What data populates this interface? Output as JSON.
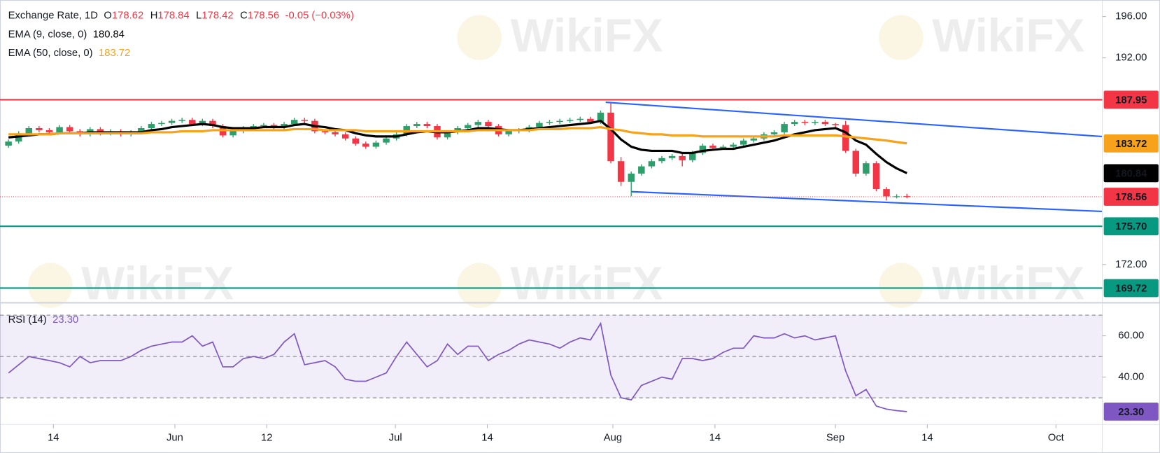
{
  "header": {
    "title": "Exchange Rate, 1D",
    "quote_keys": [
      "O",
      "H",
      "L",
      "C"
    ],
    "change": "-0.05 (−0.03%)"
  },
  "watermark": "WikiFX",
  "chart_data": [
    {
      "type": "candlestick",
      "ohlc": [
        [
          183.5,
          184.1,
          183.3,
          183.9
        ],
        [
          183.9,
          184.9,
          183.7,
          184.7
        ],
        [
          184.7,
          185.4,
          184.5,
          185.2
        ],
        [
          185.2,
          185.4,
          184.8,
          185.0
        ],
        [
          185.0,
          185.2,
          184.6,
          184.8
        ],
        [
          184.8,
          185.5,
          184.6,
          185.3
        ],
        [
          185.3,
          185.5,
          184.7,
          184.9
        ],
        [
          184.9,
          185.1,
          184.4,
          184.6
        ],
        [
          184.6,
          185.3,
          184.4,
          185.1
        ],
        [
          185.1,
          185.3,
          184.5,
          184.7
        ],
        [
          184.7,
          185.1,
          184.5,
          184.9
        ],
        [
          184.9,
          185.1,
          184.4,
          184.6
        ],
        [
          184.6,
          185.0,
          184.4,
          184.8
        ],
        [
          184.8,
          185.4,
          184.6,
          185.2
        ],
        [
          185.2,
          185.8,
          185.0,
          185.6
        ],
        [
          185.6,
          185.9,
          185.4,
          185.7
        ],
        [
          185.7,
          186.1,
          185.5,
          185.9
        ],
        [
          185.9,
          186.2,
          185.7,
          186.0
        ],
        [
          186.0,
          186.2,
          185.4,
          185.6
        ],
        [
          185.6,
          186.1,
          185.4,
          185.9
        ],
        [
          185.9,
          186.1,
          185.2,
          185.4
        ],
        [
          185.4,
          185.6,
          184.3,
          184.5
        ],
        [
          184.5,
          185.1,
          184.3,
          184.9
        ],
        [
          184.9,
          185.4,
          184.7,
          185.2
        ],
        [
          185.2,
          185.6,
          185.0,
          185.4
        ],
        [
          185.4,
          185.7,
          185.2,
          185.5
        ],
        [
          185.5,
          185.7,
          185.1,
          185.3
        ],
        [
          185.3,
          185.8,
          185.1,
          185.6
        ],
        [
          185.6,
          186.2,
          185.4,
          186.0
        ],
        [
          186.0,
          186.2,
          185.7,
          185.9
        ],
        [
          185.9,
          186.1,
          184.7,
          184.9
        ],
        [
          184.9,
          185.1,
          184.6,
          184.8
        ],
        [
          184.8,
          185.0,
          184.4,
          184.6
        ],
        [
          184.6,
          184.8,
          184.0,
          184.2
        ],
        [
          184.2,
          184.4,
          183.5,
          183.7
        ],
        [
          183.7,
          183.9,
          183.2,
          183.4
        ],
        [
          183.4,
          184.0,
          183.2,
          183.8
        ],
        [
          183.8,
          184.4,
          183.6,
          184.2
        ],
        [
          184.2,
          184.8,
          184.0,
          184.6
        ],
        [
          184.6,
          185.6,
          184.4,
          185.4
        ],
        [
          185.4,
          185.8,
          185.2,
          185.6
        ],
        [
          185.6,
          185.8,
          185.2,
          185.4
        ],
        [
          185.4,
          185.6,
          184.1,
          184.3
        ],
        [
          184.3,
          185.0,
          184.1,
          184.8
        ],
        [
          184.8,
          185.4,
          184.6,
          185.2
        ],
        [
          185.2,
          185.7,
          185.0,
          185.5
        ],
        [
          185.5,
          186.0,
          185.3,
          185.8
        ],
        [
          185.8,
          186.0,
          185.2,
          185.4
        ],
        [
          185.4,
          185.6,
          184.4,
          184.6
        ],
        [
          184.6,
          185.1,
          184.4,
          184.9
        ],
        [
          184.9,
          185.2,
          184.7,
          185.0
        ],
        [
          185.0,
          185.5,
          184.8,
          185.3
        ],
        [
          185.3,
          185.9,
          185.1,
          185.7
        ],
        [
          185.7,
          186.0,
          185.5,
          185.8
        ],
        [
          185.8,
          186.1,
          185.6,
          185.9
        ],
        [
          185.9,
          186.2,
          185.7,
          186.0
        ],
        [
          186.0,
          186.3,
          185.8,
          186.1
        ],
        [
          186.1,
          186.3,
          185.6,
          185.8
        ],
        [
          185.8,
          186.9,
          185.6,
          186.7
        ],
        [
          186.7,
          187.6,
          181.8,
          182.0
        ],
        [
          182.0,
          182.4,
          179.6,
          180.0
        ],
        [
          180.0,
          181.0,
          178.6,
          180.8
        ],
        [
          180.8,
          181.7,
          180.6,
          181.5
        ],
        [
          181.5,
          182.2,
          181.3,
          182.0
        ],
        [
          182.0,
          182.5,
          181.8,
          182.3
        ],
        [
          182.3,
          182.7,
          182.1,
          182.5
        ],
        [
          182.5,
          182.7,
          181.5,
          182.1
        ],
        [
          182.1,
          183.0,
          181.9,
          182.8
        ],
        [
          182.8,
          183.7,
          182.6,
          183.5
        ],
        [
          183.5,
          183.7,
          183.1,
          183.3
        ],
        [
          183.3,
          183.6,
          183.1,
          183.4
        ],
        [
          183.4,
          183.8,
          183.2,
          183.6
        ],
        [
          183.6,
          184.2,
          183.4,
          184.0
        ],
        [
          184.0,
          184.4,
          183.8,
          184.2
        ],
        [
          184.2,
          184.8,
          184.0,
          184.6
        ],
        [
          184.6,
          185.0,
          184.4,
          184.8
        ],
        [
          184.8,
          185.8,
          184.6,
          185.6
        ],
        [
          185.6,
          186.0,
          185.4,
          185.8
        ],
        [
          185.8,
          186.0,
          185.5,
          185.7
        ],
        [
          185.7,
          186.0,
          185.5,
          185.8
        ],
        [
          185.8,
          186.0,
          185.4,
          185.6
        ],
        [
          185.6,
          185.7,
          185.3,
          185.5
        ],
        [
          185.5,
          185.9,
          182.8,
          183.0
        ],
        [
          183.0,
          183.2,
          180.5,
          180.8
        ],
        [
          180.8,
          182.0,
          180.6,
          181.8
        ],
        [
          181.8,
          182.0,
          179.1,
          179.3
        ],
        [
          179.3,
          179.5,
          178.2,
          178.6
        ],
        [
          178.6,
          178.8,
          178.4,
          178.61
        ],
        [
          178.62,
          178.84,
          178.42,
          178.56
        ]
      ],
      "up_color": "#2e9e6b",
      "down_color": "#f23645",
      "series": [
        {
          "name": "EMA (9, close, 0)",
          "color": "#000000",
          "values": [
            184.3,
            184.4,
            184.5,
            184.6,
            184.6,
            184.7,
            184.7,
            184.7,
            184.8,
            184.8,
            184.8,
            184.8,
            184.8,
            184.8,
            185.0,
            185.1,
            185.3,
            185.4,
            185.5,
            185.6,
            185.5,
            185.3,
            185.2,
            185.2,
            185.2,
            185.3,
            185.3,
            185.3,
            185.5,
            185.6,
            185.4,
            185.3,
            185.1,
            185.0,
            184.7,
            184.5,
            184.4,
            184.4,
            184.4,
            184.6,
            184.8,
            184.9,
            184.8,
            184.8,
            184.9,
            185.0,
            185.2,
            185.2,
            185.1,
            185.0,
            185.0,
            185.1,
            185.2,
            185.3,
            185.4,
            185.5,
            185.6,
            185.7,
            185.9,
            185.1,
            184.1,
            183.4,
            183.1,
            183.0,
            183.0,
            183.0,
            182.8,
            182.8,
            183.0,
            183.1,
            183.2,
            183.2,
            183.4,
            183.6,
            183.8,
            184.0,
            184.3,
            184.6,
            184.8,
            185.0,
            185.1,
            185.2,
            184.8,
            184.0,
            183.6,
            182.7,
            181.9,
            181.3,
            180.84
          ]
        },
        {
          "name": "EMA (50, close, 0)",
          "color": "#f7a21b",
          "values": [
            184.6,
            184.6,
            184.6,
            184.6,
            184.6,
            184.7,
            184.7,
            184.7,
            184.7,
            184.7,
            184.7,
            184.7,
            184.7,
            184.7,
            184.8,
            184.8,
            184.8,
            184.9,
            184.9,
            184.9,
            185.0,
            185.0,
            185.0,
            185.0,
            185.0,
            185.0,
            185.0,
            185.0,
            185.1,
            185.1,
            185.1,
            185.0,
            185.0,
            185.0,
            185.0,
            184.9,
            184.9,
            184.9,
            184.9,
            184.9,
            184.9,
            184.9,
            184.9,
            184.9,
            184.9,
            184.9,
            185.0,
            185.0,
            185.0,
            185.0,
            185.0,
            185.0,
            185.1,
            185.1,
            185.1,
            185.2,
            185.2,
            185.2,
            185.3,
            185.1,
            185.0,
            184.8,
            184.7,
            184.6,
            184.6,
            184.5,
            184.5,
            184.5,
            184.4,
            184.4,
            184.4,
            184.4,
            184.4,
            184.4,
            184.4,
            184.4,
            184.5,
            184.5,
            184.5,
            184.5,
            184.5,
            184.5,
            184.4,
            184.3,
            184.2,
            184.1,
            184.0,
            183.85,
            183.72
          ]
        }
      ],
      "levels": [
        {
          "value": 187.95,
          "color": "#f23645"
        },
        {
          "value": 175.7,
          "label": "175.70",
          "color": "#089981"
        },
        {
          "value": 169.72,
          "color": "#089981"
        }
      ],
      "trendlines": [
        {
          "points": [
            [
              58.5,
              187.7
            ],
            [
              107.1,
              184.39
            ]
          ],
          "color": "#2962ff"
        },
        {
          "points": [
            [
              61,
              179.05
            ],
            [
              107.1,
              177.14
            ]
          ],
          "color": "#2962ff"
        }
      ],
      "xlim": [
        -0.83,
        107.14
      ],
      "ylim": [
        168.3,
        197.6
      ],
      "yticks": [
        {
          "value": 196,
          "label": "196.00"
        },
        {
          "value": 192,
          "label": "192.00"
        },
        {
          "value": 172,
          "label": "172.00"
        }
      ]
    },
    {
      "type": "line",
      "series": [
        {
          "name": "RSI (14)",
          "color": "#7e57c2",
          "values": [
            42,
            46,
            50,
            49,
            48,
            47,
            45,
            50,
            47,
            48,
            48,
            48,
            50,
            53,
            55,
            56,
            57,
            57,
            60,
            55,
            57,
            45,
            45,
            49,
            50,
            49,
            51,
            57,
            61,
            46,
            47,
            48,
            45,
            39,
            38,
            38,
            40,
            42,
            50,
            57,
            51,
            45,
            48,
            56,
            51,
            55,
            55,
            48,
            51,
            53,
            56,
            58,
            57,
            56,
            54,
            57,
            59,
            58,
            66,
            41,
            30,
            29,
            36,
            38,
            40,
            39,
            49,
            49,
            48,
            49,
            52,
            54,
            54,
            60,
            59,
            59,
            61,
            59,
            60,
            58,
            59,
            60,
            43,
            31,
            34,
            26,
            24.5,
            23.8,
            23.3
          ],
          "value_labels": [
            null,
            null,
            null,
            null,
            null,
            null,
            null,
            null,
            null,
            null,
            null,
            null,
            null,
            null,
            null,
            null,
            null,
            null,
            null,
            null,
            null,
            null,
            null,
            null,
            null,
            null,
            null,
            null,
            null,
            null,
            null,
            null,
            null,
            null,
            null,
            null,
            null,
            null,
            null,
            null,
            null,
            null,
            null,
            null,
            null,
            null,
            null,
            null,
            null,
            null,
            null,
            null,
            null,
            null,
            null,
            null,
            null,
            null,
            null,
            null,
            null,
            null,
            null,
            null,
            null,
            null,
            null,
            null,
            null,
            null,
            null,
            null,
            null,
            null,
            null,
            null,
            null,
            null,
            null,
            null,
            null,
            null,
            null,
            null,
            null,
            null,
            null,
            null,
            "23.30"
          ]
        }
      ],
      "levels": [
        70,
        50,
        30
      ],
      "xlim": [
        -0.83,
        107.14
      ],
      "ylim": [
        17.1,
        76
      ],
      "yticks": [
        {
          "value": 60,
          "label": "60.00"
        },
        {
          "value": 40,
          "label": "40.00"
        }
      ],
      "xticks": [
        {
          "value": 4.4,
          "label": "14"
        },
        {
          "value": 16.3,
          "label": "Jun"
        },
        {
          "value": 25.3,
          "label": "12"
        },
        {
          "value": 37.9,
          "label": "Jul"
        },
        {
          "value": 46.9,
          "label": "14"
        },
        {
          "value": 59.2,
          "label": "Aug"
        },
        {
          "value": 69.2,
          "label": "14"
        },
        {
          "value": 81,
          "label": "Sep"
        },
        {
          "value": 90,
          "label": "14"
        },
        {
          "value": 102.6,
          "label": "Oct"
        }
      ]
    }
  ]
}
